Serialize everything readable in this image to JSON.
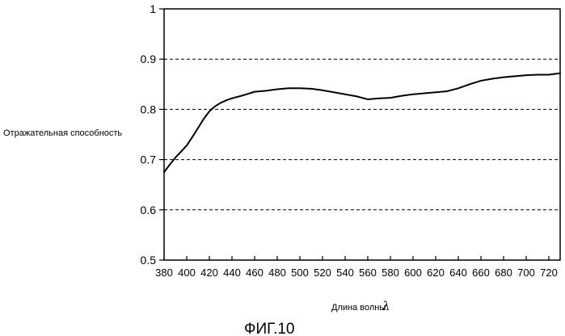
{
  "chart_data": {
    "type": "line",
    "title": "",
    "ylabel": "Отражательная способность",
    "xlabel": "Длина волны",
    "xlabel_symbol": "λ",
    "xlim": [
      380,
      730
    ],
    "ylim": [
      0.5,
      1.0
    ],
    "grid": "horizontal-dashed",
    "x_ticks": [
      380,
      400,
      420,
      440,
      460,
      480,
      500,
      520,
      540,
      560,
      580,
      600,
      620,
      640,
      660,
      680,
      700,
      720
    ],
    "y_ticks": [
      0.5,
      0.6,
      0.7,
      0.8,
      0.9,
      1
    ],
    "y_tick_labels": [
      "0.5",
      "0.6",
      "0.7",
      "0.8",
      "0.9",
      "1"
    ],
    "series": [
      {
        "x": [
          380,
          385,
          390,
          395,
          400,
          405,
          410,
          415,
          420,
          425,
          430,
          435,
          440,
          450,
          460,
          470,
          480,
          490,
          500,
          510,
          520,
          530,
          540,
          550,
          560,
          570,
          580,
          590,
          600,
          610,
          620,
          630,
          640,
          650,
          660,
          670,
          680,
          690,
          700,
          710,
          720,
          730
        ],
        "values": [
          0.675,
          0.69,
          0.704,
          0.716,
          0.728,
          0.745,
          0.763,
          0.781,
          0.796,
          0.806,
          0.813,
          0.818,
          0.822,
          0.828,
          0.835,
          0.837,
          0.84,
          0.842,
          0.842,
          0.841,
          0.838,
          0.834,
          0.83,
          0.826,
          0.82,
          0.822,
          0.823,
          0.827,
          0.83,
          0.832,
          0.834,
          0.836,
          0.842,
          0.85,
          0.857,
          0.861,
          0.864,
          0.866,
          0.868,
          0.869,
          0.869,
          0.872
        ]
      }
    ]
  },
  "caption": "ФИГ.10"
}
